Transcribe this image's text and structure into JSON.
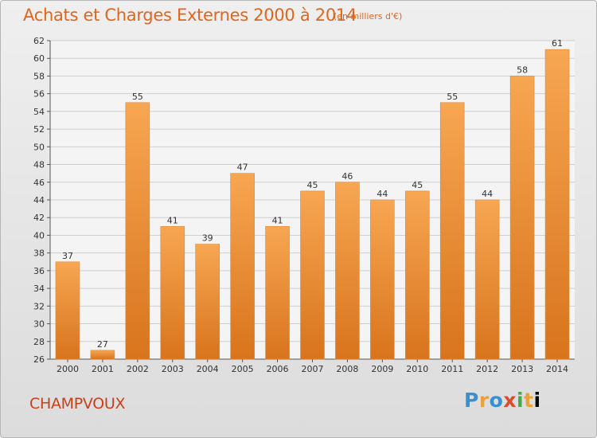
{
  "title": "Achats et Charges Externes 2000 à 2014",
  "subtitle": "(en milliers d'€)",
  "town": "CHAMPVOUX",
  "logo_text": "Proxiti",
  "colors": {
    "title": "#e0661c",
    "town": "#c8401a",
    "bar_light": "#f7a652",
    "bar_dark": "#d8741c"
  },
  "chart_data": {
    "type": "bar",
    "title": "Achats et Charges Externes 2000 à 2014",
    "subtitle": "(en milliers d'€)",
    "categories": [
      "2000",
      "2001",
      "2002",
      "2003",
      "2004",
      "2005",
      "2006",
      "2007",
      "2008",
      "2009",
      "2010",
      "2011",
      "2012",
      "2013",
      "2014"
    ],
    "values": [
      37,
      27,
      55,
      41,
      39,
      47,
      41,
      45,
      46,
      44,
      45,
      55,
      44,
      58,
      61
    ],
    "ylim": [
      26,
      62
    ],
    "yticks": [
      26,
      28,
      30,
      32,
      34,
      36,
      38,
      40,
      42,
      44,
      46,
      48,
      50,
      52,
      54,
      56,
      58,
      60,
      62
    ],
    "grid": true,
    "legend": "none"
  }
}
